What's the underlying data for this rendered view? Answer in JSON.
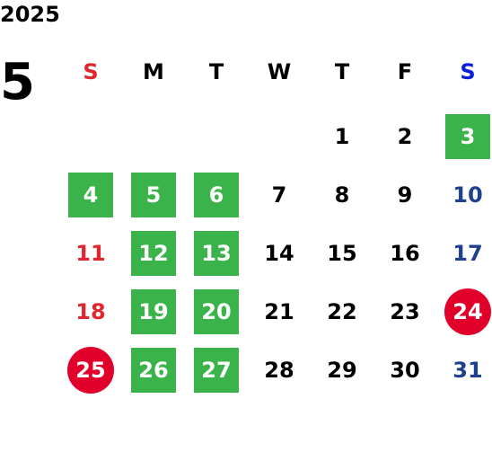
{
  "year": "2025",
  "month": "5",
  "colors": {
    "sunday_header": "#e0262e",
    "saturday_header": "#0a1fd8",
    "sunday_text": "#e0262e",
    "saturday_text": "#1f3f8f",
    "highlight_green": "#3ab34a",
    "highlight_red": "#e0002a"
  },
  "weekdays": [
    {
      "label": "S",
      "kind": "sun"
    },
    {
      "label": "M",
      "kind": ""
    },
    {
      "label": "T",
      "kind": ""
    },
    {
      "label": "W",
      "kind": ""
    },
    {
      "label": "T",
      "kind": ""
    },
    {
      "label": "F",
      "kind": ""
    },
    {
      "label": "S",
      "kind": "sat"
    }
  ],
  "weeks": [
    [
      {
        "label": "",
        "style": ""
      },
      {
        "label": "",
        "style": ""
      },
      {
        "label": "",
        "style": ""
      },
      {
        "label": "",
        "style": ""
      },
      {
        "label": "1",
        "style": ""
      },
      {
        "label": "2",
        "style": ""
      },
      {
        "label": "3",
        "style": "green"
      }
    ],
    [
      {
        "label": "4",
        "style": "green"
      },
      {
        "label": "5",
        "style": "green"
      },
      {
        "label": "6",
        "style": "green"
      },
      {
        "label": "7",
        "style": ""
      },
      {
        "label": "8",
        "style": ""
      },
      {
        "label": "9",
        "style": ""
      },
      {
        "label": "10",
        "style": "sat"
      }
    ],
    [
      {
        "label": "11",
        "style": "sun"
      },
      {
        "label": "12",
        "style": "green"
      },
      {
        "label": "13",
        "style": "green"
      },
      {
        "label": "14",
        "style": ""
      },
      {
        "label": "15",
        "style": ""
      },
      {
        "label": "16",
        "style": ""
      },
      {
        "label": "17",
        "style": "sat"
      }
    ],
    [
      {
        "label": "18",
        "style": "sun"
      },
      {
        "label": "19",
        "style": "green"
      },
      {
        "label": "20",
        "style": "green"
      },
      {
        "label": "21",
        "style": ""
      },
      {
        "label": "22",
        "style": ""
      },
      {
        "label": "23",
        "style": ""
      },
      {
        "label": "24",
        "style": "circle"
      }
    ],
    [
      {
        "label": "25",
        "style": "circle"
      },
      {
        "label": "26",
        "style": "green"
      },
      {
        "label": "27",
        "style": "green"
      },
      {
        "label": "28",
        "style": ""
      },
      {
        "label": "29",
        "style": ""
      },
      {
        "label": "30",
        "style": ""
      },
      {
        "label": "31",
        "style": "sat"
      }
    ]
  ]
}
